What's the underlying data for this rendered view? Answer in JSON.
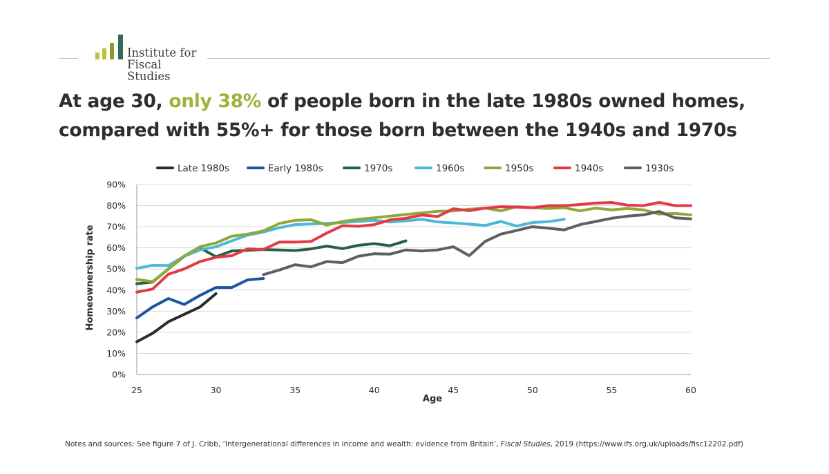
{
  "header": {
    "logo_line1": "Institute for",
    "logo_line2": "Fiscal Studies",
    "logo_color": "#8c9a2b"
  },
  "title": {
    "part1": "At age 30, ",
    "highlight": "only 38%",
    "part2": " of people born in the late 1980s owned homes,",
    "line2": "compared with 55%+ for those born between the 1940s and 1970s",
    "highlight_color": "#9bb53a"
  },
  "notes": {
    "prefix": "Notes and sources: See figure 7 of J. Cribb, ‘Intergenerational differences in income and wealth: evidence from Britain’, ",
    "journal": "Fiscal Studies",
    "suffix": ", 2019 (https://www.ifs.org.uk/uploads/fisc12202.pdf)"
  },
  "chart_data": {
    "type": "line",
    "title": "",
    "xlabel": "Age",
    "ylabel": "Homeownership rate",
    "xlim": [
      25,
      60
    ],
    "ylim": [
      0,
      90
    ],
    "xticks": [
      25,
      30,
      35,
      40,
      45,
      50,
      55,
      60
    ],
    "xtick_labels": [
      "25",
      "30",
      "35",
      "40",
      "45",
      "50",
      "55",
      "60"
    ],
    "yticks": [
      0,
      10,
      20,
      30,
      40,
      50,
      60,
      70,
      80,
      90
    ],
    "ytick_labels": [
      "0%",
      "10%",
      "20%",
      "30%",
      "40%",
      "50%",
      "60%",
      "70%",
      "80%",
      "90%"
    ],
    "grid": true,
    "legend_position": "top",
    "series": [
      {
        "name": "Late 1980s",
        "color": "#2b2b2b",
        "x_start": 25,
        "values": [
          15.5,
          19.5,
          25,
          28.5,
          32,
          38.3
        ]
      },
      {
        "name": "Early 1980s",
        "color": "#1a56a0",
        "x_start": 25,
        "values": [
          26.8,
          32,
          36,
          33.2,
          37.5,
          41.2,
          41.2,
          44.8,
          45.5
        ]
      },
      {
        "name": "1970s",
        "color": "#2a5f45",
        "x_start": 25,
        "values": [
          43,
          43.8,
          50,
          56,
          60,
          55.8,
          58.5,
          58.8,
          59.2,
          59,
          58.7,
          59.5,
          60.8,
          59.6,
          61.2,
          62,
          61,
          63.3
        ]
      },
      {
        "name": "1960s",
        "color": "#4db8d8",
        "x_start": 25,
        "values": [
          50.3,
          51.7,
          51.6,
          56,
          59,
          60.5,
          63.3,
          66,
          67.5,
          69.5,
          71,
          71.3,
          71.6,
          72,
          72.5,
          73,
          72.2,
          72.8,
          73.5,
          72.3,
          71.8,
          71.2,
          70.6,
          72.5,
          70.3,
          72,
          72.4,
          73.5
        ]
      },
      {
        "name": "1950s",
        "color": "#8fa83a",
        "x_start": 25,
        "values": [
          45,
          44,
          50,
          56.2,
          60.5,
          62.3,
          65.5,
          66.5,
          68,
          71.5,
          73,
          73.3,
          70.8,
          72.5,
          73.5,
          74.2,
          75,
          75.8,
          76.5,
          77.3,
          77.5,
          78.3,
          78.8,
          77.5,
          79.5,
          79,
          78.6,
          79,
          77.5,
          78.8,
          78,
          78.6,
          78,
          76,
          76.3,
          75.6
        ]
      },
      {
        "name": "1940s",
        "color": "#e23a46",
        "x_start": 25,
        "values": [
          39,
          40.5,
          47.5,
          50,
          53.5,
          55.5,
          56.3,
          59.5,
          59.2,
          62.7,
          62.7,
          63,
          67,
          70.5,
          70.2,
          71,
          73.2,
          74,
          75.5,
          74.8,
          78.5,
          77.6,
          78.8,
          79.5,
          79.3,
          79,
          80,
          80,
          80.5,
          81.2,
          81.5,
          80.2,
          80,
          81.5,
          80,
          80
        ]
      },
      {
        "name": "1930s",
        "color": "#5f5f62",
        "x_start": 33,
        "values": [
          47.3,
          49.5,
          52,
          51,
          53.5,
          53,
          56,
          57.2,
          57,
          59,
          58.5,
          59,
          60.5,
          56.3,
          63,
          66.5,
          68.2,
          70,
          69.3,
          68.5,
          71,
          72.5,
          74,
          75,
          75.6,
          77.2,
          74.2,
          73.7
        ]
      }
    ]
  }
}
